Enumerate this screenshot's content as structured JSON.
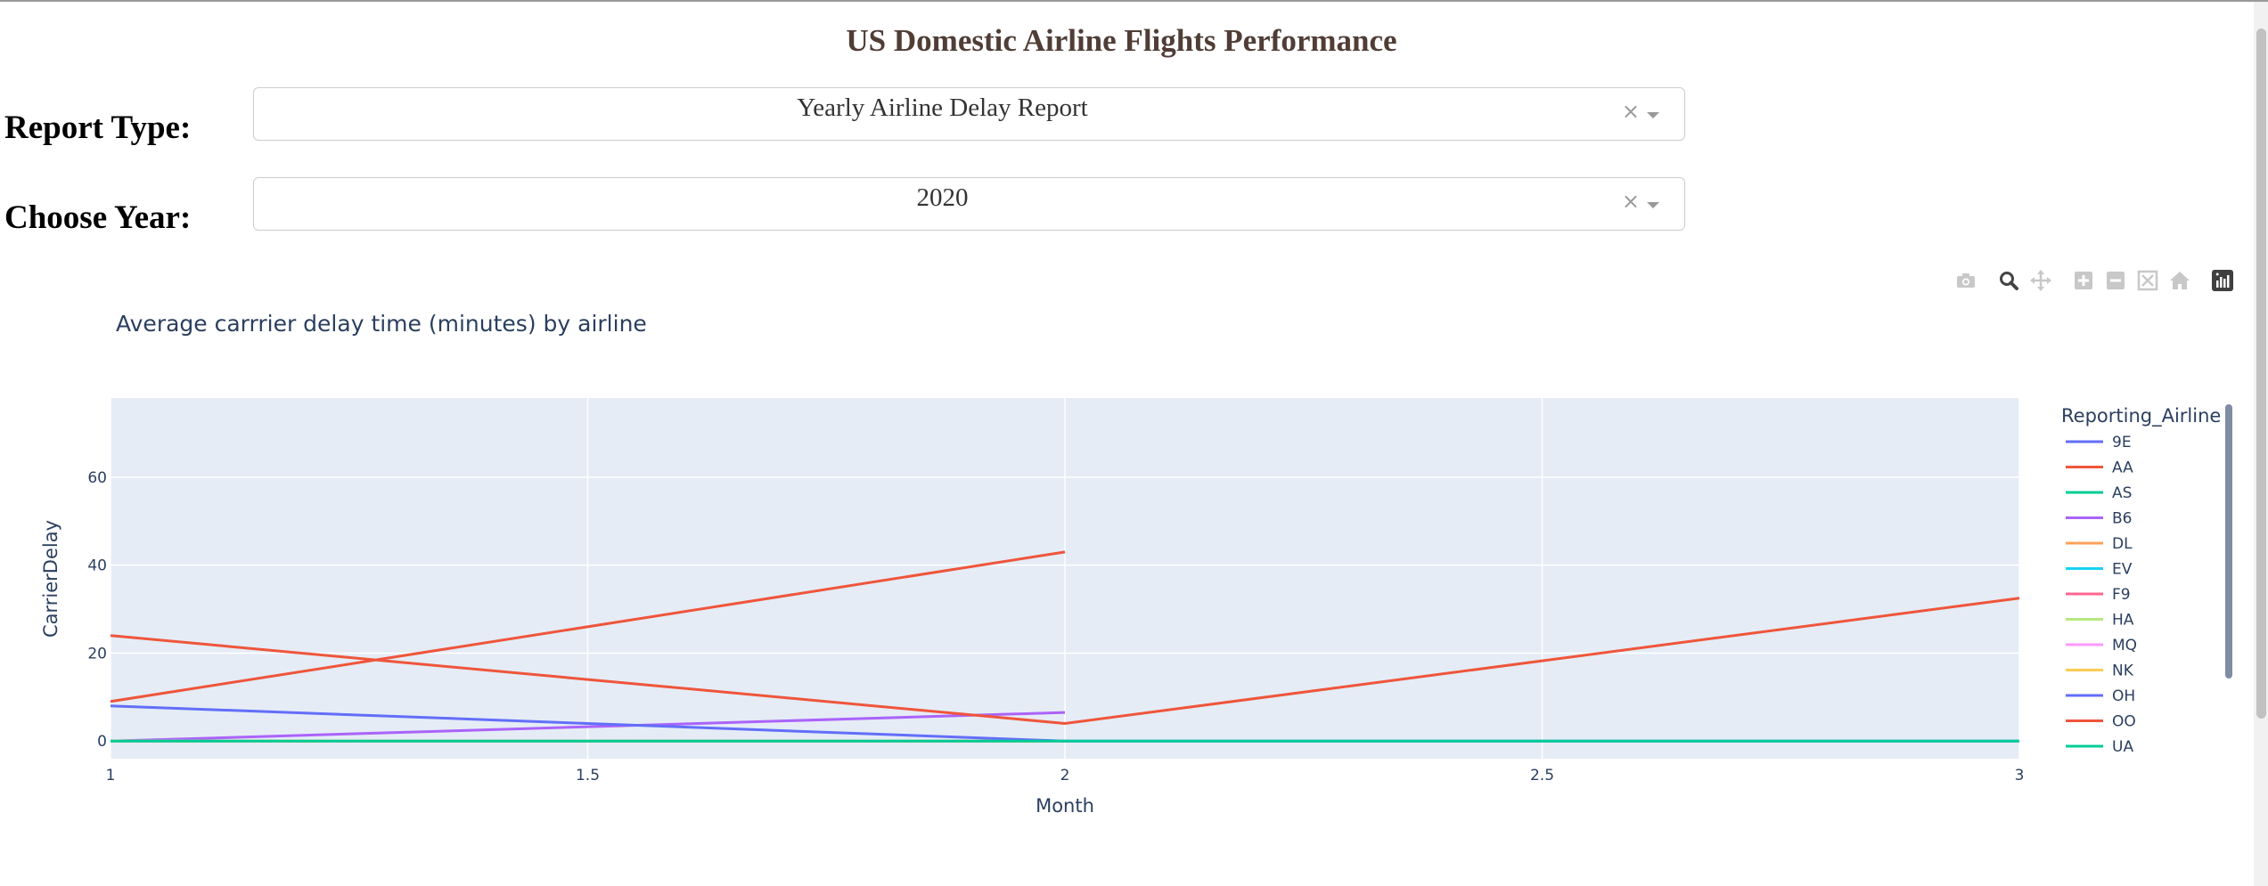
{
  "page": {
    "title": "US Domestic Airline Flights Performance"
  },
  "controls": {
    "report_type_label": "Report Type:",
    "report_type_value": "Yearly Airline Delay Report",
    "year_label": "Choose Year:",
    "year_value": "2020",
    "clear_glyph": "×"
  },
  "modebar": {
    "icons": [
      "camera-icon",
      "zoom-icon",
      "pan-icon",
      "zoom-in-icon",
      "zoom-out-icon",
      "autoscale-icon",
      "reset-axes-icon",
      "plotly-logo-icon"
    ]
  },
  "chart_data": {
    "type": "line",
    "title": "Average carrrier delay time (minutes) by airline",
    "xlabel": "Month",
    "ylabel": "CarrierDelay",
    "xlim": [
      1,
      3
    ],
    "ylim": [
      -4,
      78
    ],
    "xticks": [
      1,
      1.5,
      2,
      2.5,
      3
    ],
    "xtick_labels": [
      "1",
      "1.5",
      "2",
      "2.5",
      "3"
    ],
    "yticks": [
      0,
      20,
      40,
      60
    ],
    "ytick_labels": [
      "0",
      "20",
      "40",
      "60"
    ],
    "grid": true,
    "legend_title": "Reporting_Airline",
    "legend_position": "right",
    "series": [
      {
        "name": "9E",
        "color": "#636efa",
        "x": [
          1,
          2
        ],
        "y": [
          0,
          0
        ]
      },
      {
        "name": "AA",
        "color": "#EF553B",
        "x": [
          1,
          2
        ],
        "y": [
          9,
          43
        ]
      },
      {
        "name": "AS",
        "color": "#00cc96",
        "x": [
          1,
          2
        ],
        "y": [
          0,
          0
        ]
      },
      {
        "name": "B6",
        "color": "#ab63fa",
        "x": [
          1,
          2
        ],
        "y": [
          0,
          6.5
        ]
      },
      {
        "name": "DL",
        "color": "#FFA15A",
        "x": [
          1,
          2
        ],
        "y": [
          0,
          0
        ]
      },
      {
        "name": "EV",
        "color": "#19d3f3",
        "x": [
          1,
          2
        ],
        "y": [
          0,
          0
        ]
      },
      {
        "name": "F9",
        "color": "#FF6692",
        "x": [
          1,
          2
        ],
        "y": [
          0,
          0
        ]
      },
      {
        "name": "HA",
        "color": "#B6E880",
        "x": [
          1,
          2
        ],
        "y": [
          0,
          0
        ]
      },
      {
        "name": "MQ",
        "color": "#FF97FF",
        "x": [
          1,
          2
        ],
        "y": [
          0,
          0
        ]
      },
      {
        "name": "NK",
        "color": "#FECB52",
        "x": [
          1,
          2
        ],
        "y": [
          0,
          0
        ]
      },
      {
        "name": "OH",
        "color": "#636efa",
        "x": [
          1,
          2,
          3
        ],
        "y": [
          8,
          0,
          0
        ]
      },
      {
        "name": "OO",
        "color": "#EF553B",
        "x": [
          1,
          2,
          3
        ],
        "y": [
          24,
          4,
          32.5
        ]
      },
      {
        "name": "UA",
        "color": "#00cc96",
        "x": [
          1,
          2,
          3
        ],
        "y": [
          0,
          0,
          0
        ]
      }
    ]
  }
}
